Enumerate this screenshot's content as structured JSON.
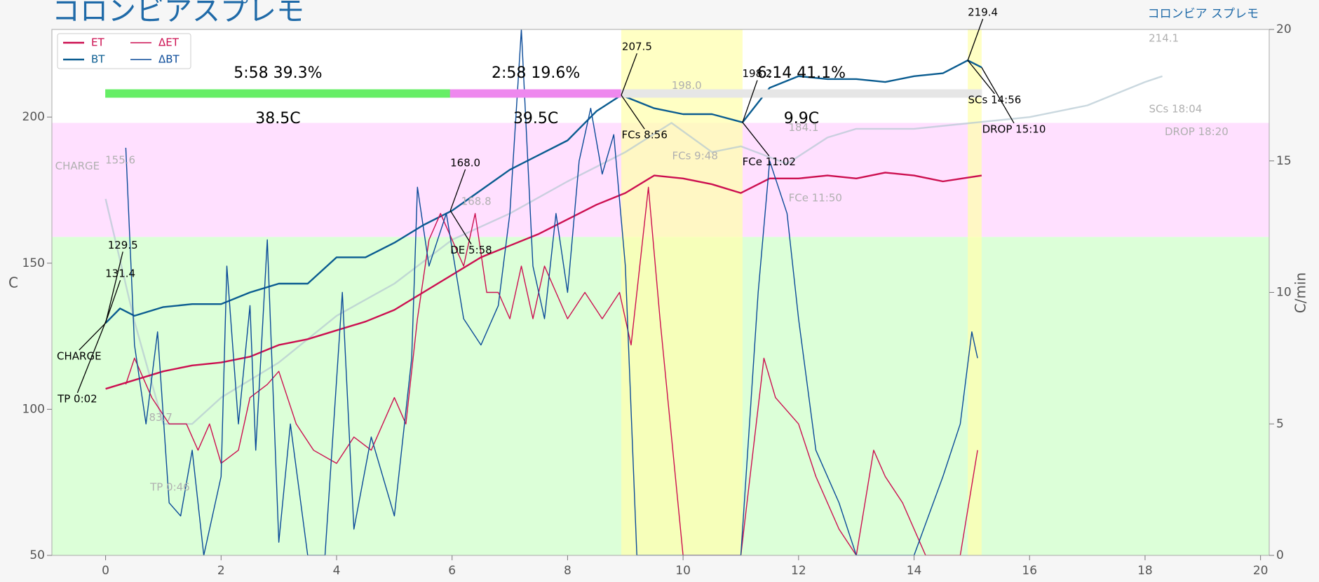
{
  "chart_data": {
    "type": "line",
    "title": "コロンビアスプレモ",
    "subtitle": "コロンビア スプレモ",
    "ylabel": "C",
    "y2label": "C/min",
    "xlim": [
      -0.93,
      20.15
    ],
    "xticks": [
      0,
      2,
      4,
      6,
      8,
      10,
      12,
      14,
      16,
      18,
      20
    ],
    "ylim": [
      50,
      230
    ],
    "yticks": [
      50,
      100,
      150,
      200
    ],
    "y2lim": [
      0,
      20
    ],
    "y2ticks": [
      0,
      5,
      10,
      15,
      20
    ],
    "legend": "upper left",
    "bands": [
      {
        "from": 50,
        "to": 159,
        "color": "#dcffd8"
      },
      {
        "from": 159,
        "to": 198,
        "color": "#ffe0ff"
      }
    ],
    "phase_spans": [
      {
        "start": 8.93,
        "end": 11.03,
        "color": "#ffffb0"
      },
      {
        "start": 14.93,
        "end": 15.17,
        "color": "#ffffb0"
      }
    ],
    "phases": [
      {
        "label": "5:58  39.3%",
        "delta": "38.5C",
        "start": 0,
        "end": 5.97,
        "color": "#66ee66"
      },
      {
        "label": "2:58  19.6%",
        "delta": "39.5C",
        "start": 5.97,
        "end": 8.93,
        "color": "#ee88ee"
      },
      {
        "label": "6:14  41.1%",
        "delta": "9.9C",
        "start": 8.93,
        "end": 15.17,
        "color": "#e6e6e6"
      }
    ],
    "series": [
      {
        "name": "ET",
        "color": "#cc0f50",
        "width": 2.4,
        "x": [
          0,
          0.5,
          1,
          1.5,
          2,
          2.5,
          3,
          3.5,
          4,
          4.5,
          5,
          5.5,
          6,
          6.5,
          7,
          7.5,
          8,
          8.5,
          9,
          9.5,
          10,
          10.5,
          11,
          11.5,
          12,
          12.5,
          13,
          13.5,
          14,
          14.5,
          15.17
        ],
        "values": [
          107,
          110,
          113,
          115,
          116,
          118,
          122,
          124,
          127,
          130,
          134,
          140,
          146,
          152,
          156,
          160,
          165,
          170,
          174,
          180,
          179,
          177,
          174,
          179,
          179,
          180,
          179,
          181,
          180,
          178,
          180
        ]
      },
      {
        "name": "BT",
        "color": "#0a5c90",
        "width": 2.4,
        "x": [
          0,
          0.25,
          0.5,
          1,
          1.5,
          2,
          2.5,
          3,
          3.5,
          4,
          4.5,
          5,
          5.5,
          6,
          6.5,
          7,
          7.5,
          8,
          8.5,
          8.93,
          9.5,
          10,
          10.5,
          11.03,
          11.5,
          12,
          12.5,
          13,
          13.5,
          14,
          14.5,
          14.93,
          15.17
        ],
        "values": [
          129.5,
          134.5,
          132,
          135,
          136,
          136,
          140,
          143,
          143,
          152,
          152,
          157,
          163,
          168,
          175,
          182,
          187,
          192,
          202,
          207.5,
          203,
          201,
          201,
          198.2,
          210,
          214,
          213,
          213,
          212,
          214,
          215,
          219.4,
          217
        ]
      },
      {
        "name": "ΔET",
        "color": "#cc0f50",
        "width": 1.4,
        "axis": "y2",
        "x": [
          0.35,
          0.5,
          0.8,
          1.1,
          1.4,
          1.6,
          1.8,
          2,
          2.3,
          2.5,
          2.8,
          3,
          3.3,
          3.6,
          4,
          4.3,
          4.6,
          5,
          5.2,
          5.4,
          5.6,
          5.8,
          6,
          6.2,
          6.4,
          6.6,
          6.8,
          7,
          7.2,
          7.4,
          7.6,
          7.8,
          8,
          8.3,
          8.6,
          8.9,
          9.1,
          9.4,
          9.6,
          10,
          11,
          11.4,
          11.6,
          12,
          12.3,
          12.7,
          13,
          13.3,
          13.5,
          13.8,
          14.2,
          14.8,
          15.1
        ],
        "values": [
          6.5,
          7.5,
          6,
          5,
          5,
          4,
          5,
          3.5,
          4,
          6,
          6.5,
          7,
          5,
          4,
          3.5,
          4.5,
          4,
          6,
          5,
          9,
          12,
          13,
          12,
          11,
          13,
          10,
          10,
          9,
          11,
          9,
          11,
          10,
          9,
          10,
          9,
          10,
          8,
          14,
          9,
          0,
          0,
          7.5,
          6,
          5,
          3,
          1,
          0,
          4,
          3,
          2,
          0,
          0,
          4
        ]
      },
      {
        "name": "ΔBT",
        "color": "#0a4a98",
        "width": 1.4,
        "axis": "y2",
        "x": [
          0.35,
          0.5,
          0.7,
          0.9,
          1.1,
          1.3,
          1.5,
          1.7,
          2,
          2.1,
          2.3,
          2.5,
          2.6,
          2.8,
          3,
          3.2,
          3.5,
          3.8,
          4.1,
          4.3,
          4.6,
          5,
          5.3,
          5.4,
          5.6,
          5.9,
          6.2,
          6.5,
          6.8,
          7,
          7.2,
          7.4,
          7.6,
          7.8,
          8,
          8.2,
          8.4,
          8.6,
          8.8,
          9,
          9.2,
          10,
          11,
          11.3,
          11.5,
          11.8,
          12,
          12.3,
          12.7,
          13,
          14,
          14.5,
          14.8,
          15,
          15.1
        ],
        "values": [
          15.5,
          8,
          5,
          8.5,
          2,
          1.5,
          4,
          0,
          3,
          11,
          5,
          9.5,
          4,
          12,
          0.5,
          5,
          0,
          0,
          10,
          1,
          4.5,
          1.5,
          7.5,
          14,
          11,
          13,
          9,
          8,
          9.5,
          13,
          20,
          11,
          9,
          13,
          10,
          15,
          17,
          14.5,
          16,
          11,
          0,
          0,
          0,
          10,
          15,
          13,
          9,
          4,
          2,
          0,
          0,
          3,
          5,
          8.5,
          7.5
        ]
      },
      {
        "name": null,
        "color": "#b4c8d2",
        "width": 2.4,
        "x": [
          0,
          0.5,
          1,
          1.5,
          2,
          3,
          4,
          5,
          6,
          7,
          8,
          9,
          9.8,
          10.5,
          11,
          11.8,
          12.5,
          13,
          14,
          15,
          16,
          17,
          18,
          18.3
        ],
        "values": [
          172,
          130,
          95,
          95,
          104,
          116,
          132,
          143,
          158,
          167,
          178,
          188,
          198,
          188,
          190,
          184,
          193,
          196,
          196,
          198,
          200,
          204,
          212,
          214
        ]
      }
    ],
    "annotations": [
      {
        "label": "CHARGE",
        "x": 0,
        "y": 129.5
      },
      {
        "label": "TP 0:02",
        "x": 0.03,
        "y": 131.4
      },
      {
        "label": "129.5",
        "x": 0,
        "y": 129.5
      },
      {
        "label": "131.4",
        "x": 0.03,
        "y": 131.4
      },
      {
        "label": "168.0",
        "x": 5.97,
        "y": 168
      },
      {
        "label": "DE 5:58",
        "x": 5.97,
        "y": 168
      },
      {
        "label": "207.5",
        "x": 8.93,
        "y": 207.5
      },
      {
        "label": "FCs 8:56",
        "x": 8.93,
        "y": 207.5
      },
      {
        "label": "198.2",
        "x": 11.03,
        "y": 198.2
      },
      {
        "label": "FCe 11:02",
        "x": 11.03,
        "y": 198.2
      },
      {
        "label": "219.4",
        "x": 14.93,
        "y": 219.4
      },
      {
        "label": "SCs 14:56",
        "x": 14.93,
        "y": 219.4
      },
      {
        "label": "DROP 15:10",
        "x": 15.17,
        "y": 217
      }
    ],
    "background_annotations": [
      "CHARGE",
      "155.6",
      "83.7",
      "TP 0:46",
      "168.8",
      "198.0",
      "FCs 9:48",
      "184.1",
      "FCe 11:50",
      "214.1",
      "SCs 18:04",
      "DROP 18:20"
    ]
  }
}
